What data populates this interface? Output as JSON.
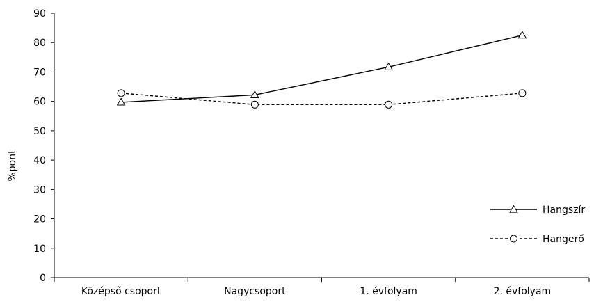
{
  "chart_data": {
    "type": "line",
    "categories": [
      "Középső csoport",
      "Nagycsoport",
      "1. évfolyam",
      "2. évfolyam"
    ],
    "series": [
      {
        "name": "Hangszír",
        "values": [
          59.7,
          62.2,
          71.7,
          82.5
        ],
        "marker": "triangle",
        "line": "solid",
        "color": "#000000"
      },
      {
        "name": "Hangerő",
        "values": [
          62.8,
          58.9,
          58.9,
          62.8
        ],
        "marker": "circle",
        "line": "dashed",
        "color": "#000000"
      }
    ],
    "title": "",
    "xlabel": "",
    "ylabel": "%pont",
    "ylim": [
      0,
      90
    ],
    "yticks": [
      0,
      10,
      20,
      30,
      40,
      50,
      60,
      70,
      80,
      90
    ],
    "grid": false,
    "legend_position": "right"
  }
}
